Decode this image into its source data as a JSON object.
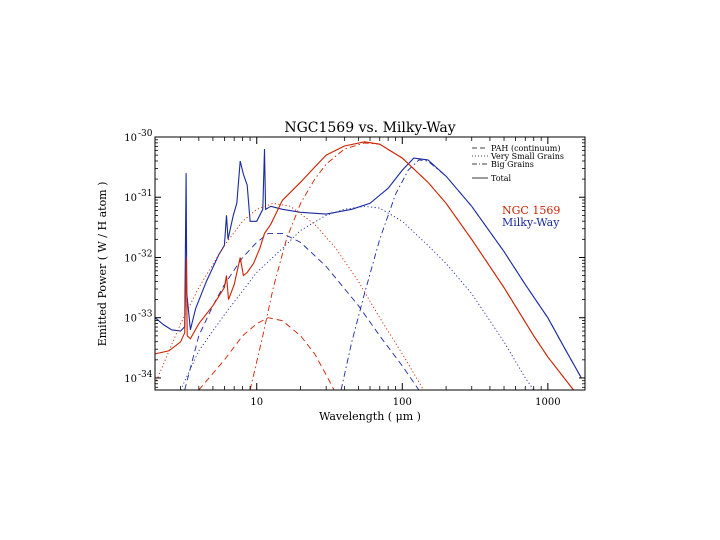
{
  "chart_data": {
    "type": "line",
    "title": "NGC1569 vs. Milky-Way",
    "xlabel": "Wavelength ( μm )",
    "ylabel": "Emitted Power ( W / H atom )",
    "xscale": "log",
    "yscale": "log",
    "xlim": [
      2,
      1800
    ],
    "ylim_exponent": [
      -34.2,
      -30.0
    ],
    "x_ticks": [
      {
        "value": 10,
        "label": "10"
      },
      {
        "value": 100,
        "label": "100"
      },
      {
        "value": 1000,
        "label": "1000"
      }
    ],
    "y_ticks": [
      {
        "exp": -30,
        "base": "10",
        "sup": "-30"
      },
      {
        "exp": -31,
        "base": "10",
        "sup": "-31"
      },
      {
        "exp": -32,
        "base": "10",
        "sup": "-32"
      },
      {
        "exp": -33,
        "base": "10",
        "sup": "-33"
      },
      {
        "exp": -34,
        "base": "10",
        "sup": "-34"
      }
    ],
    "legend": {
      "position": "top-right",
      "entries": [
        {
          "label": "PAH (continuum)",
          "dash": "long"
        },
        {
          "label": "Very Small Grains",
          "dash": "dotted"
        },
        {
          "label": "Big Grains",
          "dash": "dashdot"
        },
        {
          "label": "Total",
          "dash": "solid"
        }
      ]
    },
    "annotations": [
      {
        "text": "NGC 1569",
        "color": "#cc2200"
      },
      {
        "text": "Milky-Way",
        "color": "#1a2aa0"
      }
    ],
    "y_units": "log10 of emitted power (W / H atom)",
    "series": [
      {
        "name": "Milky-Way Total",
        "color": "#1a2aa0",
        "dash": "solid",
        "points": [
          [
            2.0,
            -33.0
          ],
          [
            2.3,
            -33.12
          ],
          [
            2.6,
            -33.2
          ],
          [
            3.0,
            -33.22
          ],
          [
            3.2,
            -33.15
          ],
          [
            3.27,
            -30.6
          ],
          [
            3.31,
            -32.6
          ],
          [
            3.5,
            -33.2
          ],
          [
            3.8,
            -32.85
          ],
          [
            4.5,
            -32.4
          ],
          [
            5.5,
            -31.95
          ],
          [
            6.0,
            -31.8
          ],
          [
            6.2,
            -31.3
          ],
          [
            6.35,
            -31.7
          ],
          [
            6.9,
            -31.3
          ],
          [
            7.3,
            -31.1
          ],
          [
            7.7,
            -30.4
          ],
          [
            8.1,
            -30.62
          ],
          [
            8.6,
            -30.8
          ],
          [
            9.0,
            -31.4
          ],
          [
            10.0,
            -31.4
          ],
          [
            11.0,
            -31.2
          ],
          [
            11.3,
            -30.2
          ],
          [
            11.5,
            -31.2
          ],
          [
            12.5,
            -31.15
          ],
          [
            15,
            -31.2
          ],
          [
            20,
            -31.25
          ],
          [
            30,
            -31.28
          ],
          [
            45,
            -31.2
          ],
          [
            60,
            -31.1
          ],
          [
            80,
            -30.85
          ],
          [
            100,
            -30.55
          ],
          [
            120,
            -30.35
          ],
          [
            150,
            -30.38
          ],
          [
            200,
            -30.65
          ],
          [
            300,
            -31.15
          ],
          [
            500,
            -31.9
          ],
          [
            700,
            -32.45
          ],
          [
            1000,
            -33.0
          ],
          [
            1300,
            -33.5
          ],
          [
            1700,
            -34.0
          ]
        ]
      },
      {
        "name": "Milky-Way PAH (continuum)",
        "color": "#1a2aa0",
        "dash": "long",
        "points": [
          [
            3.2,
            -34.2
          ],
          [
            4,
            -33.3
          ],
          [
            5,
            -32.8
          ],
          [
            6,
            -32.45
          ],
          [
            8,
            -32.0
          ],
          [
            10,
            -31.75
          ],
          [
            12,
            -31.6
          ],
          [
            15,
            -31.6
          ],
          [
            20,
            -31.75
          ],
          [
            30,
            -32.15
          ],
          [
            50,
            -32.8
          ],
          [
            70,
            -33.3
          ],
          [
            100,
            -33.8
          ],
          [
            130,
            -34.2
          ]
        ]
      },
      {
        "name": "Milky-Way Very Small Grains",
        "color": "#1a2aa0",
        "dash": "dotted",
        "points": [
          [
            3.0,
            -34.2
          ],
          [
            4,
            -33.55
          ],
          [
            6,
            -32.95
          ],
          [
            10,
            -32.25
          ],
          [
            15,
            -31.85
          ],
          [
            20,
            -31.55
          ],
          [
            30,
            -31.3
          ],
          [
            40,
            -31.2
          ],
          [
            55,
            -31.15
          ],
          [
            70,
            -31.18
          ],
          [
            100,
            -31.4
          ],
          [
            150,
            -31.8
          ],
          [
            200,
            -32.1
          ],
          [
            300,
            -32.6
          ],
          [
            500,
            -33.4
          ],
          [
            700,
            -34.0
          ],
          [
            800,
            -34.2
          ]
        ]
      },
      {
        "name": "Milky-Way Big Grains",
        "color": "#1a2aa0",
        "dash": "dashdot",
        "points": [
          [
            38,
            -34.2
          ],
          [
            45,
            -33.4
          ],
          [
            55,
            -32.6
          ],
          [
            70,
            -31.7
          ],
          [
            90,
            -30.95
          ],
          [
            110,
            -30.55
          ],
          [
            130,
            -30.38
          ],
          [
            150,
            -30.4
          ],
          [
            200,
            -30.65
          ],
          [
            300,
            -31.15
          ],
          [
            500,
            -31.9
          ],
          [
            700,
            -32.45
          ],
          [
            1000,
            -33.0
          ],
          [
            1300,
            -33.5
          ],
          [
            1700,
            -34.0
          ]
        ]
      },
      {
        "name": "NGC 1569 Total",
        "color": "#cc2200",
        "dash": "solid",
        "points": [
          [
            2.0,
            -33.6
          ],
          [
            2.5,
            -33.55
          ],
          [
            3.0,
            -33.4
          ],
          [
            3.2,
            -33.25
          ],
          [
            3.28,
            -32.0
          ],
          [
            3.33,
            -33.3
          ],
          [
            3.5,
            -33.35
          ],
          [
            4,
            -33.1
          ],
          [
            5,
            -32.8
          ],
          [
            6,
            -32.5
          ],
          [
            6.2,
            -32.3
          ],
          [
            6.4,
            -32.7
          ],
          [
            7.0,
            -32.45
          ],
          [
            7.7,
            -32.0
          ],
          [
            8.1,
            -32.3
          ],
          [
            8.6,
            -32.25
          ],
          [
            9.5,
            -32.1
          ],
          [
            10.5,
            -31.85
          ],
          [
            11.3,
            -31.6
          ],
          [
            12.5,
            -31.45
          ],
          [
            15,
            -31.05
          ],
          [
            20,
            -30.75
          ],
          [
            25,
            -30.5
          ],
          [
            30,
            -30.3
          ],
          [
            40,
            -30.15
          ],
          [
            55,
            -30.08
          ],
          [
            70,
            -30.12
          ],
          [
            100,
            -30.35
          ],
          [
            150,
            -30.75
          ],
          [
            200,
            -31.1
          ],
          [
            300,
            -31.7
          ],
          [
            500,
            -32.5
          ],
          [
            800,
            -33.3
          ],
          [
            1000,
            -33.65
          ],
          [
            1500,
            -34.2
          ]
        ]
      },
      {
        "name": "NGC 1569 PAH (continuum)",
        "color": "#cc2200",
        "dash": "long",
        "points": [
          [
            4,
            -34.2
          ],
          [
            6,
            -33.7
          ],
          [
            8,
            -33.3
          ],
          [
            10,
            -33.1
          ],
          [
            12,
            -33.0
          ],
          [
            15,
            -33.05
          ],
          [
            20,
            -33.3
          ],
          [
            25,
            -33.6
          ],
          [
            30,
            -33.95
          ],
          [
            34,
            -34.2
          ]
        ]
      },
      {
        "name": "NGC 1569 Very Small Grains",
        "color": "#cc2200",
        "dash": "dotted",
        "points": [
          [
            2.0,
            -34.1
          ],
          [
            3,
            -33.1
          ],
          [
            4,
            -32.5
          ],
          [
            6,
            -31.8
          ],
          [
            8,
            -31.4
          ],
          [
            10,
            -31.2
          ],
          [
            13,
            -31.1
          ],
          [
            17,
            -31.15
          ],
          [
            25,
            -31.45
          ],
          [
            35,
            -31.85
          ],
          [
            50,
            -32.4
          ],
          [
            70,
            -33.0
          ],
          [
            100,
            -33.6
          ],
          [
            140,
            -34.2
          ]
        ]
      },
      {
        "name": "NGC 1569 Big Grains",
        "color": "#cc2200",
        "dash": "dashdot",
        "points": [
          [
            9,
            -34.2
          ],
          [
            11,
            -33.3
          ],
          [
            13,
            -32.5
          ],
          [
            16,
            -31.7
          ],
          [
            20,
            -31.1
          ],
          [
            25,
            -30.7
          ],
          [
            30,
            -30.45
          ],
          [
            40,
            -30.2
          ],
          [
            55,
            -30.1
          ],
          [
            70,
            -30.12
          ],
          [
            100,
            -30.35
          ],
          [
            150,
            -30.75
          ],
          [
            200,
            -31.1
          ],
          [
            300,
            -31.7
          ],
          [
            500,
            -32.5
          ],
          [
            800,
            -33.3
          ],
          [
            1000,
            -33.65
          ],
          [
            1500,
            -34.2
          ]
        ]
      }
    ]
  }
}
